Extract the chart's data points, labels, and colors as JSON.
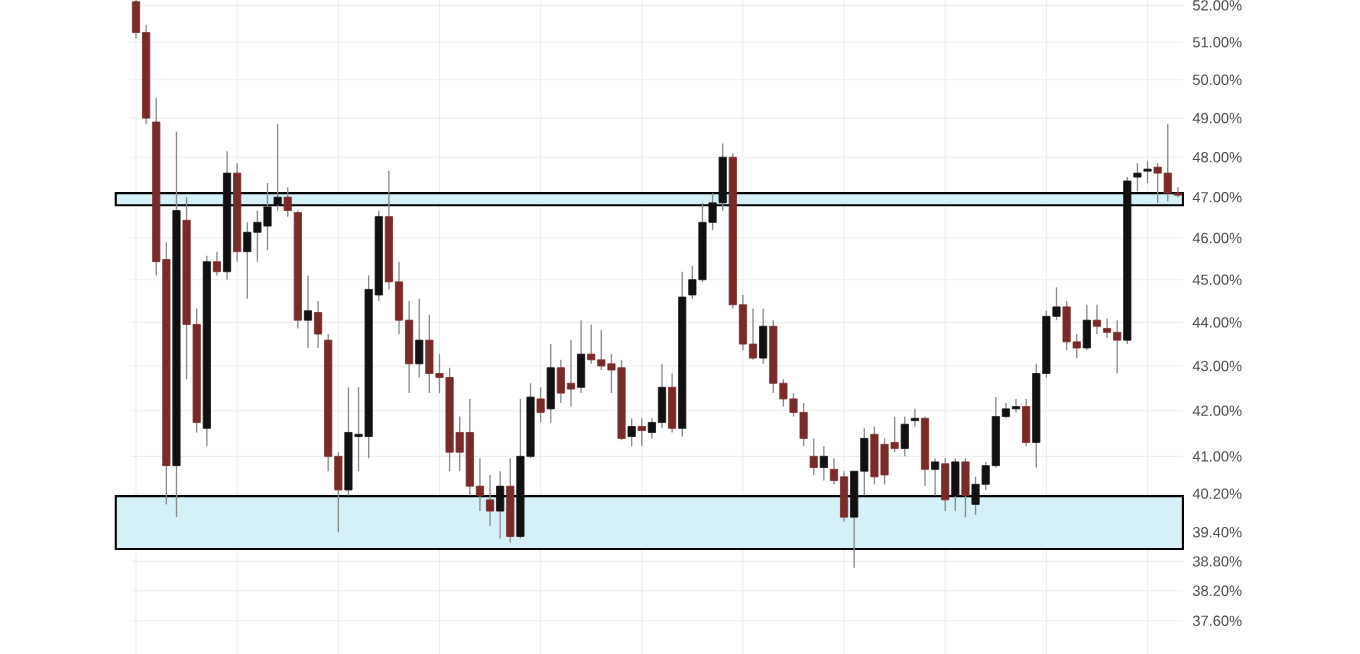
{
  "chart_data": {
    "type": "candlestick",
    "log": true,
    "grid": true,
    "tick_labels": "y",
    "categories": [
      null,
      null,
      null,
      null,
      null,
      null,
      null,
      null,
      null,
      null,
      null,
      null,
      null,
      null,
      null,
      null,
      null,
      null,
      null,
      null,
      null,
      null,
      null,
      null,
      null,
      null,
      null,
      null,
      null,
      null,
      null,
      null,
      null,
      null,
      null,
      null,
      null,
      null,
      null,
      null,
      null,
      null,
      null,
      null,
      null,
      null,
      null,
      null,
      null,
      null,
      null,
      null,
      null,
      null,
      null,
      null,
      null,
      null,
      null,
      null,
      null,
      null,
      null,
      null,
      null,
      null,
      null,
      null,
      null,
      null,
      null,
      null,
      null,
      null,
      null,
      null,
      null,
      null,
      null,
      null,
      null,
      null,
      null,
      null,
      null,
      null,
      null,
      null,
      null,
      null,
      null,
      null,
      null,
      null,
      null,
      null,
      null,
      null,
      null,
      null,
      null,
      null,
      null,
      null
    ],
    "ohlc": [
      [
        52.1,
        52.15,
        51.1,
        51.26
      ],
      [
        51.26,
        51.47,
        48.85,
        49.0
      ],
      [
        48.9,
        49.53,
        45.1,
        45.43
      ],
      [
        45.48,
        45.9,
        39.98,
        40.8
      ],
      [
        40.8,
        48.65,
        39.71,
        46.67
      ],
      [
        46.43,
        47.0,
        42.7,
        43.95
      ],
      [
        43.95,
        44.32,
        41.52,
        41.74
      ],
      [
        41.61,
        45.57,
        41.22,
        45.43
      ],
      [
        45.43,
        45.67,
        45.1,
        45.19
      ],
      [
        45.19,
        48.15,
        45.0,
        47.6
      ],
      [
        47.6,
        47.85,
        45.43,
        45.67
      ],
      [
        45.67,
        46.38,
        44.55,
        46.14
      ],
      [
        46.14,
        46.67,
        45.43,
        46.38
      ],
      [
        46.29,
        47.35,
        45.71,
        46.76
      ],
      [
        46.81,
        48.85,
        46.67,
        47.0
      ],
      [
        47.0,
        47.25,
        46.52,
        46.67
      ],
      [
        46.62,
        46.67,
        43.86,
        44.05
      ],
      [
        44.05,
        45.1,
        43.41,
        44.27
      ],
      [
        44.23,
        44.5,
        43.41,
        43.73
      ],
      [
        43.59,
        43.73,
        40.68,
        41.0
      ],
      [
        41.0,
        41.09,
        39.4,
        40.28
      ],
      [
        40.28,
        42.52,
        40.16,
        41.52
      ],
      [
        41.43,
        42.52,
        40.68,
        41.48
      ],
      [
        41.43,
        45.1,
        40.96,
        44.77
      ],
      [
        44.64,
        46.67,
        44.5,
        46.52
      ],
      [
        46.52,
        47.65,
        44.77,
        44.95
      ],
      [
        44.95,
        45.43,
        43.73,
        44.05
      ],
      [
        44.05,
        44.5,
        42.39,
        43.05
      ],
      [
        43.05,
        44.55,
        42.74,
        43.59
      ],
      [
        43.59,
        44.18,
        42.39,
        42.83
      ],
      [
        42.83,
        43.27,
        42.39,
        42.74
      ],
      [
        42.74,
        42.96,
        40.68,
        41.09
      ],
      [
        41.52,
        41.87,
        40.68,
        41.09
      ],
      [
        41.52,
        42.26,
        40.16,
        40.36
      ],
      [
        40.36,
        40.96,
        39.84,
        40.16
      ],
      [
        40.07,
        40.6,
        39.53,
        39.84
      ],
      [
        39.84,
        40.68,
        39.27,
        40.36
      ],
      [
        40.36,
        40.96,
        39.19,
        39.31
      ],
      [
        39.31,
        42.26,
        39.27,
        41.0
      ],
      [
        41.0,
        42.61,
        40.96,
        42.3
      ],
      [
        42.26,
        42.52,
        41.74,
        41.96
      ],
      [
        42.04,
        43.5,
        41.74,
        42.96
      ],
      [
        42.96,
        43.14,
        42.17,
        42.39
      ],
      [
        42.61,
        43.59,
        42.09,
        42.48
      ],
      [
        42.52,
        44.05,
        42.39,
        43.27
      ],
      [
        43.27,
        43.95,
        43.05,
        43.14
      ],
      [
        43.14,
        43.82,
        42.91,
        43.0
      ],
      [
        43.05,
        43.27,
        42.39,
        42.91
      ],
      [
        42.96,
        43.14,
        41.35,
        41.39
      ],
      [
        41.43,
        41.83,
        41.22,
        41.65
      ],
      [
        41.65,
        41.83,
        41.22,
        41.56
      ],
      [
        41.52,
        41.83,
        41.39,
        41.74
      ],
      [
        41.74,
        43.05,
        41.61,
        42.52
      ],
      [
        42.52,
        42.83,
        41.52,
        41.61
      ],
      [
        41.61,
        45.19,
        41.43,
        44.59
      ],
      [
        44.64,
        45.33,
        44.55,
        45.0
      ],
      [
        45.0,
        46.86,
        44.95,
        46.38
      ],
      [
        46.38,
        47.1,
        46.19,
        46.86
      ],
      [
        46.86,
        48.35,
        46.67,
        48.0
      ],
      [
        48.0,
        48.1,
        44.32,
        44.41
      ],
      [
        44.41,
        44.64,
        43.36,
        43.5
      ],
      [
        43.5,
        44.32,
        43.14,
        43.18
      ],
      [
        43.18,
        44.32,
        43.05,
        43.91
      ],
      [
        43.91,
        44.05,
        42.39,
        42.61
      ],
      [
        42.61,
        42.7,
        42.09,
        42.26
      ],
      [
        42.26,
        42.39,
        41.87,
        41.96
      ],
      [
        41.96,
        42.17,
        41.22,
        41.39
      ],
      [
        41.0,
        41.39,
        40.6,
        40.76
      ],
      [
        40.76,
        41.22,
        40.48,
        41.0
      ],
      [
        40.72,
        40.96,
        40.4,
        40.48
      ],
      [
        40.56,
        40.68,
        39.62,
        39.71
      ],
      [
        39.71,
        40.68,
        38.67,
        40.68
      ],
      [
        40.68,
        41.61,
        40.16,
        41.39
      ],
      [
        41.48,
        41.65,
        40.4,
        40.56
      ],
      [
        41.26,
        41.39,
        40.4,
        40.6
      ],
      [
        41.3,
        41.87,
        41.09,
        41.17
      ],
      [
        41.17,
        41.87,
        41.0,
        41.7
      ],
      [
        41.78,
        42.04,
        41.65,
        41.83
      ],
      [
        41.83,
        41.87,
        40.36,
        40.72
      ],
      [
        40.72,
        40.96,
        40.16,
        40.88
      ],
      [
        40.84,
        40.96,
        39.84,
        40.07
      ],
      [
        40.16,
        40.96,
        39.84,
        40.88
      ],
      [
        40.88,
        40.96,
        39.71,
        40.16
      ],
      [
        39.98,
        40.56,
        39.76,
        40.4
      ],
      [
        40.4,
        40.88,
        40.28,
        40.8
      ],
      [
        40.8,
        42.3,
        40.76,
        41.87
      ],
      [
        41.87,
        42.17,
        41.83,
        42.04
      ],
      [
        42.04,
        42.26,
        41.96,
        42.09
      ],
      [
        42.09,
        42.26,
        41.22,
        41.3
      ],
      [
        41.3,
        43.05,
        40.76,
        42.83
      ],
      [
        42.83,
        44.27,
        42.74,
        44.14
      ],
      [
        44.14,
        44.82,
        44.05,
        44.36
      ],
      [
        44.36,
        44.5,
        43.36,
        43.55
      ],
      [
        43.55,
        43.73,
        43.18,
        43.41
      ],
      [
        43.41,
        44.41,
        43.36,
        44.05
      ],
      [
        44.05,
        44.41,
        43.73,
        43.91
      ],
      [
        43.86,
        44.09,
        43.64,
        43.77
      ],
      [
        43.77,
        44.05,
        42.83,
        43.59
      ],
      [
        43.59,
        47.5,
        43.5,
        47.4
      ],
      [
        47.5,
        47.85,
        47.15,
        47.6
      ],
      [
        47.65,
        47.9,
        47.35,
        47.7
      ],
      [
        47.75,
        47.85,
        46.86,
        47.6
      ],
      [
        47.6,
        48.85,
        46.9,
        47.1
      ],
      [
        47.1,
        47.25,
        47.0,
        47.05
      ]
    ],
    "ylim": [
      36.95,
      52.15
    ],
    "yticks": [
      {
        "value": 52,
        "label": "52.00%"
      },
      {
        "value": 51,
        "label": "51.00%"
      },
      {
        "value": 50,
        "label": "50.00%"
      },
      {
        "value": 49,
        "label": "49.00%"
      },
      {
        "value": 48,
        "label": "48.00%"
      },
      {
        "value": 47,
        "label": "47.00%"
      },
      {
        "value": 46,
        "label": "46.00%"
      },
      {
        "value": 45,
        "label": "45.00%"
      },
      {
        "value": 44,
        "label": "44.00%"
      },
      {
        "value": 43,
        "label": "43.00%"
      },
      {
        "value": 42,
        "label": "42.00%"
      },
      {
        "value": 41,
        "label": "41.00%"
      },
      {
        "value": 40.2,
        "label": "40.20%"
      },
      {
        "value": 39.4,
        "label": "39.40%"
      },
      {
        "value": 38.8,
        "label": "38.80%"
      },
      {
        "value": 38.2,
        "label": "38.20%"
      },
      {
        "value": 37.6,
        "label": "37.60%"
      }
    ],
    "bands": [
      {
        "axis": "y",
        "from": 46.8,
        "to": 47.1,
        "color": "#d6f0f7"
      },
      {
        "axis": "y",
        "from": 39.05,
        "to": 40.15,
        "color": "#d6f0f7"
      }
    ]
  }
}
